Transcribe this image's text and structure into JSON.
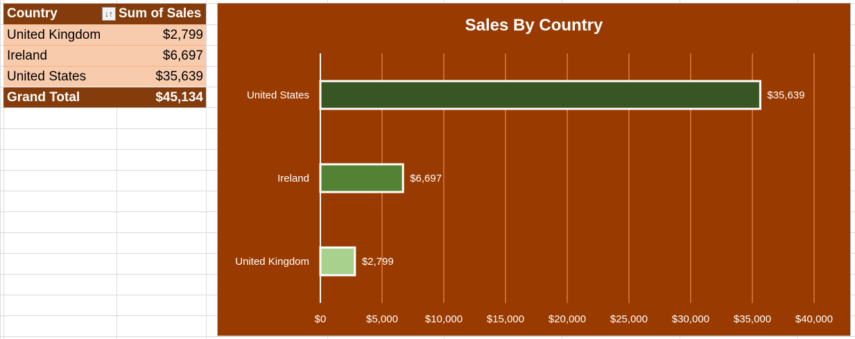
{
  "pivot": {
    "header": {
      "col1": "Country",
      "col2": "Sum of Sales",
      "filter_icon": "sort-filter-icon"
    },
    "rows": [
      {
        "country": "United Kingdom",
        "sales": "$2,799"
      },
      {
        "country": "Ireland",
        "sales": "$6,697"
      },
      {
        "country": "United States",
        "sales": "$35,639"
      }
    ],
    "total": {
      "label": "Grand Total",
      "value": "$45,134"
    },
    "colors": {
      "header_bg": "#843c0c",
      "row_bg": "#f8cbad"
    }
  },
  "chart_data": {
    "type": "bar",
    "orientation": "horizontal",
    "title": "Sales By Country",
    "categories": [
      "United States",
      "Ireland",
      "United Kingdom"
    ],
    "values": [
      35639,
      6697,
      2799
    ],
    "data_labels": [
      "$35,639",
      "$6,697",
      "$2,799"
    ],
    "bar_colors": [
      "#375623",
      "#548235",
      "#a9d18e"
    ],
    "xlim": [
      0,
      40000
    ],
    "x_ticks": [
      0,
      5000,
      10000,
      15000,
      20000,
      25000,
      30000,
      35000,
      40000
    ],
    "x_tick_labels": [
      "$0",
      "$5,000",
      "$10,000",
      "$15,000",
      "$20,000",
      "$25,000",
      "$30,000",
      "$35,000",
      "$40,000"
    ],
    "grid": true,
    "background": "#993a00",
    "gridline_color": "#e07a3a"
  }
}
